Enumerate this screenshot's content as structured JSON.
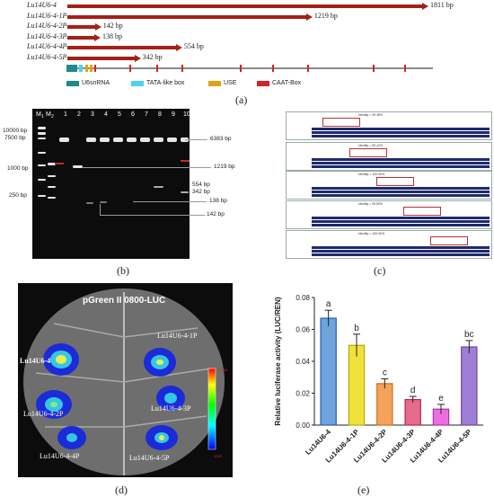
{
  "panel_a": {
    "label": "(a)",
    "fragments": [
      {
        "name": "Lu14U6-4",
        "bp": "1811 bp",
        "frac": 1.0
      },
      {
        "name": "Lu14U6-4-1P",
        "bp": "1219 bp",
        "frac": 0.673
      },
      {
        "name": "Lu14U6-4-2P",
        "bp": "142 bp",
        "frac": 0.078
      },
      {
        "name": "Lu14U6-4-3P",
        "bp": "138 bp",
        "frac": 0.076
      },
      {
        "name": "Lu14U6-4-4P",
        "bp": "554 bp",
        "frac": 0.306
      },
      {
        "name": "Lu14U6-4-5P",
        "bp": "342 bp",
        "frac": 0.189
      }
    ],
    "legend": [
      {
        "label": "U6snRNA",
        "color": "#1f8a8c"
      },
      {
        "label": "TATA-like box",
        "color": "#4fd3e8"
      },
      {
        "label": "USE",
        "color": "#e0a316"
      },
      {
        "label": "CAAT-Box",
        "color": "#d4222a"
      }
    ],
    "bar_color": "#a52016"
  },
  "panel_b": {
    "label": "(b)",
    "lane_numbers": [
      "M",
      "1",
      "M",
      "2",
      "1",
      "2",
      "3",
      "4",
      "5",
      "6",
      "7",
      "8",
      "9",
      "10"
    ],
    "left_markers": [
      "10000 bp",
      "7500 bp",
      "1000 bp",
      "250 bp"
    ],
    "right_markers": [
      "6383 bp",
      "1219 bp",
      "554 bp",
      "342 bp",
      "138 bp",
      "142 bp"
    ]
  },
  "panel_c": {
    "label": "(c)",
    "identities": [
      "Identity = 99.38%",
      "Identity = 99.42%",
      "Identity = 100.00%",
      "Identity = 99.59%",
      "Identity = 100.00%"
    ]
  },
  "panel_d": {
    "label": "(d)",
    "title": "pGreen II 0800-LUC",
    "spots": [
      "Lu14U6-4",
      "Lu14U6-4-1P",
      "Lu14U6-4-2P",
      "Lu14U6-4-3P",
      "Lu14U6-4-4P",
      "Lu14U6-4-5P"
    ],
    "scale_max": "10056",
    "scale_min": "1200"
  },
  "panel_e": {
    "label": "(e)"
  },
  "chart_data": {
    "type": "bar",
    "categories": [
      "Lu14U6-4",
      "Lu14U6-4-1P",
      "Lu14U6-4-2P",
      "Lu14U6-4-3P",
      "Lu14U6-4-4P",
      "Lu14U6-4-5P"
    ],
    "values": [
      0.067,
      0.05,
      0.026,
      0.016,
      0.01,
      0.049
    ],
    "errors": [
      0.005,
      0.007,
      0.003,
      0.002,
      0.003,
      0.004
    ],
    "significance": [
      "a",
      "b",
      "c",
      "d",
      "e",
      "bc"
    ],
    "colors": [
      "#6fa3dc",
      "#f0e23a",
      "#f4a35a",
      "#e66a8c",
      "#ec6fe0",
      "#9e7fd6"
    ],
    "edge_colors": [
      "#2a5fa8",
      "#b9a80c",
      "#c9701d",
      "#b8284f",
      "#b32ea8",
      "#6a45a8"
    ],
    "ylabel": "Relative luciferase activity (LUC/REN)",
    "ylim": [
      0,
      0.08
    ],
    "yticks": [
      "0.00",
      "0.02",
      "0.04",
      "0.06",
      "0.08"
    ],
    "grid": false
  }
}
